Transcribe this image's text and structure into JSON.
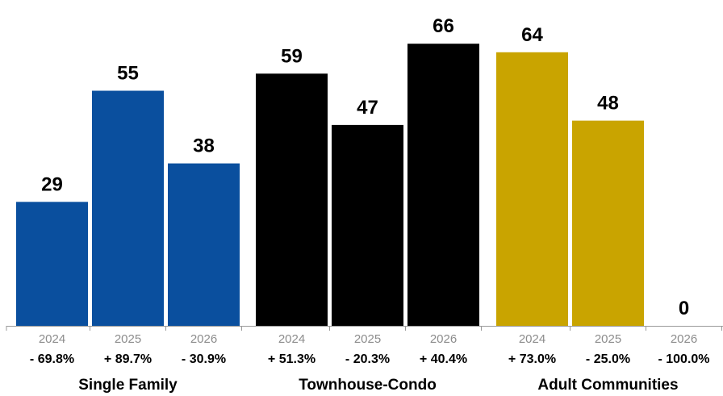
{
  "chart_data": {
    "type": "bar",
    "ylim": [
      0,
      70
    ],
    "groups": [
      {
        "name": "Single Family",
        "color": "#0a4f9e",
        "bars": [
          {
            "year": "2024",
            "value": 29,
            "change": "- 69.8%"
          },
          {
            "year": "2025",
            "value": 55,
            "change": "+ 89.7%"
          },
          {
            "year": "2026",
            "value": 38,
            "change": "- 30.9%"
          }
        ]
      },
      {
        "name": "Townhouse-Condo",
        "color": "#000000",
        "bars": [
          {
            "year": "2024",
            "value": 59,
            "change": "+ 51.3%"
          },
          {
            "year": "2025",
            "value": 47,
            "change": "- 20.3%"
          },
          {
            "year": "2026",
            "value": 66,
            "change": "+ 40.4%"
          }
        ]
      },
      {
        "name": "Adult Communities",
        "color": "#c9a400",
        "bars": [
          {
            "year": "2024",
            "value": 64,
            "change": "+ 73.0%"
          },
          {
            "year": "2025",
            "value": 48,
            "change": "- 25.0%"
          },
          {
            "year": "2026",
            "value": 0,
            "change": "- 100.0%"
          }
        ]
      }
    ]
  }
}
